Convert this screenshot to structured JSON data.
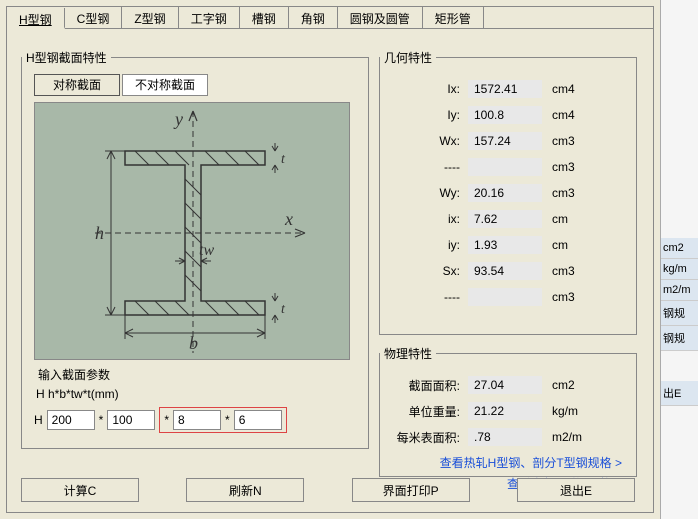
{
  "tabs": {
    "items": [
      "H型钢",
      "C型钢",
      "Z型钢",
      "工字钢",
      "槽钢",
      "角钢",
      "圆钢及圆管",
      "矩形管"
    ],
    "active_index": 0
  },
  "main_group": {
    "legend": "H型钢截面特性",
    "sym_btn": "对称截面",
    "asym_btn": "不对称截面",
    "diagram_labels": {
      "y": "y",
      "x": "x",
      "h": "h",
      "b": "b",
      "tw": "tw",
      "t_top": "t",
      "t_bot": "t"
    }
  },
  "params": {
    "legend": "输入截面参数",
    "formula": "H  h*b*tw*t(mm)",
    "label_H": "H",
    "val_h": "200",
    "val_b": "100",
    "val_tw": "8",
    "val_t": "6",
    "star": "*"
  },
  "geo": {
    "legend": "几何特性",
    "rows": [
      {
        "lbl": "Ix:",
        "val": "1572.41",
        "unit": "cm4"
      },
      {
        "lbl": "Iy:",
        "val": "100.8",
        "unit": "cm4"
      },
      {
        "lbl": "Wx:",
        "val": "157.24",
        "unit": "cm3"
      },
      {
        "lbl": "----",
        "val": "",
        "unit": "cm3"
      },
      {
        "lbl": "Wy:",
        "val": "20.16",
        "unit": "cm3"
      },
      {
        "lbl": "ix:",
        "val": "7.62",
        "unit": "cm"
      },
      {
        "lbl": "iy:",
        "val": "1.93",
        "unit": "cm"
      },
      {
        "lbl": "Sx:",
        "val": "93.54",
        "unit": "cm3"
      },
      {
        "lbl": "----",
        "val": "",
        "unit": "cm3"
      }
    ]
  },
  "phys": {
    "legend": "物理特性",
    "rows": [
      {
        "lbl": "截面面积:",
        "val": "27.04",
        "unit": "cm2"
      },
      {
        "lbl": "单位重量:",
        "val": "21.22",
        "unit": "kg/m"
      },
      {
        "lbl": "每米表面积:",
        "val": ".78",
        "unit": "m2/m"
      }
    ],
    "link1": "查看热轧H型钢、剖分T型钢规格 >",
    "link2": "查看高频H型钢规格 >"
  },
  "buttons": {
    "calc": "计算C",
    "refresh": "刷新N",
    "print": "界面打印P",
    "exit": "退出E"
  },
  "side_peek": [
    "cm2",
    "kg/m",
    "m2/m",
    "钢规",
    "钢规",
    "出E"
  ],
  "colors": {
    "diagram_bg": "#a8b8a8",
    "highlight_border": "#d44"
  }
}
